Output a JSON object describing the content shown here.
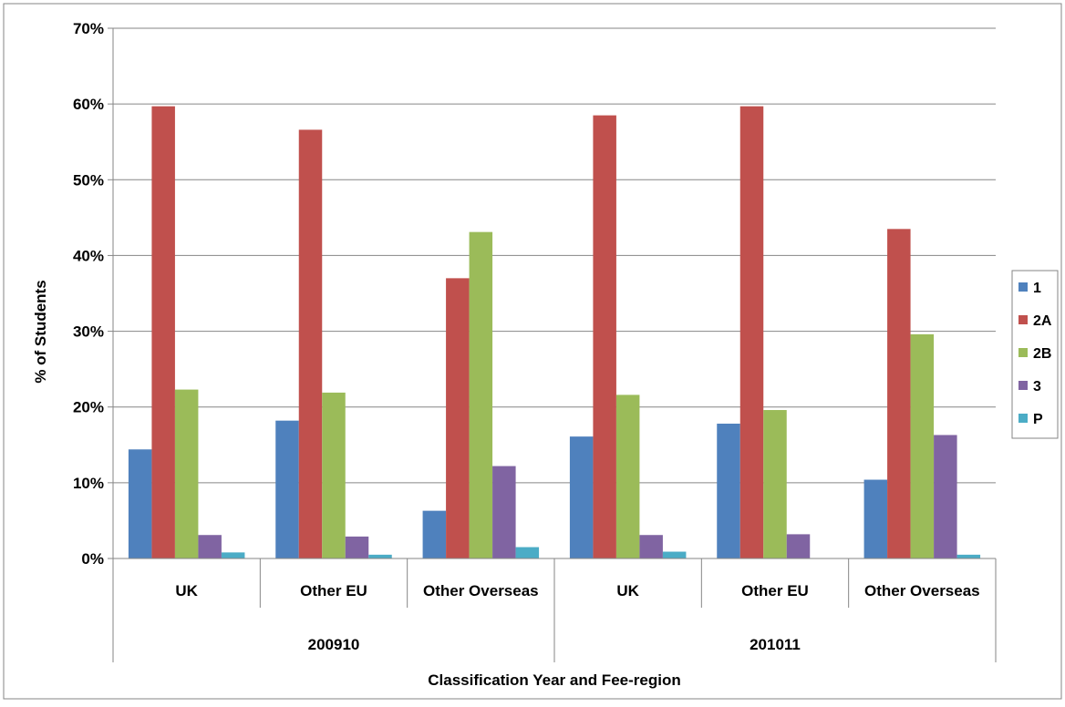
{
  "chart_data": {
    "type": "bar",
    "title": "",
    "xlabel": "Classification Year and Fee-region",
    "ylabel": "% of Students",
    "ylim": [
      0,
      70
    ],
    "y_ticks": [
      "0%",
      "10%",
      "20%",
      "30%",
      "40%",
      "50%",
      "60%",
      "70%"
    ],
    "y_tick_values": [
      0,
      10,
      20,
      30,
      40,
      50,
      60,
      70
    ],
    "grid": true,
    "legend_position": "right",
    "groups": [
      {
        "label": "200910",
        "categories": [
          "UK",
          "Other EU",
          "Other Overseas"
        ]
      },
      {
        "label": "201011",
        "categories": [
          "UK",
          "Other EU",
          "Other Overseas"
        ]
      }
    ],
    "categories": [
      "UK",
      "Other EU",
      "Other Overseas",
      "UK",
      "Other EU",
      "Other Overseas"
    ],
    "series": [
      {
        "name": "1",
        "color": "#4F81BD",
        "values": [
          14.4,
          18.2,
          6.3,
          16.1,
          17.8,
          10.4
        ]
      },
      {
        "name": "2A",
        "color": "#C0504D",
        "values": [
          59.7,
          56.6,
          37.0,
          58.5,
          59.7,
          43.5
        ]
      },
      {
        "name": "2B",
        "color": "#9BBB59",
        "values": [
          22.3,
          21.9,
          43.1,
          21.6,
          19.6,
          29.6
        ]
      },
      {
        "name": "3",
        "color": "#8064A2",
        "values": [
          3.1,
          2.9,
          12.2,
          3.1,
          3.2,
          16.3
        ]
      },
      {
        "name": "P",
        "color": "#4BACC6",
        "values": [
          0.8,
          0.5,
          1.5,
          0.9,
          0.0,
          0.5
        ]
      }
    ]
  }
}
